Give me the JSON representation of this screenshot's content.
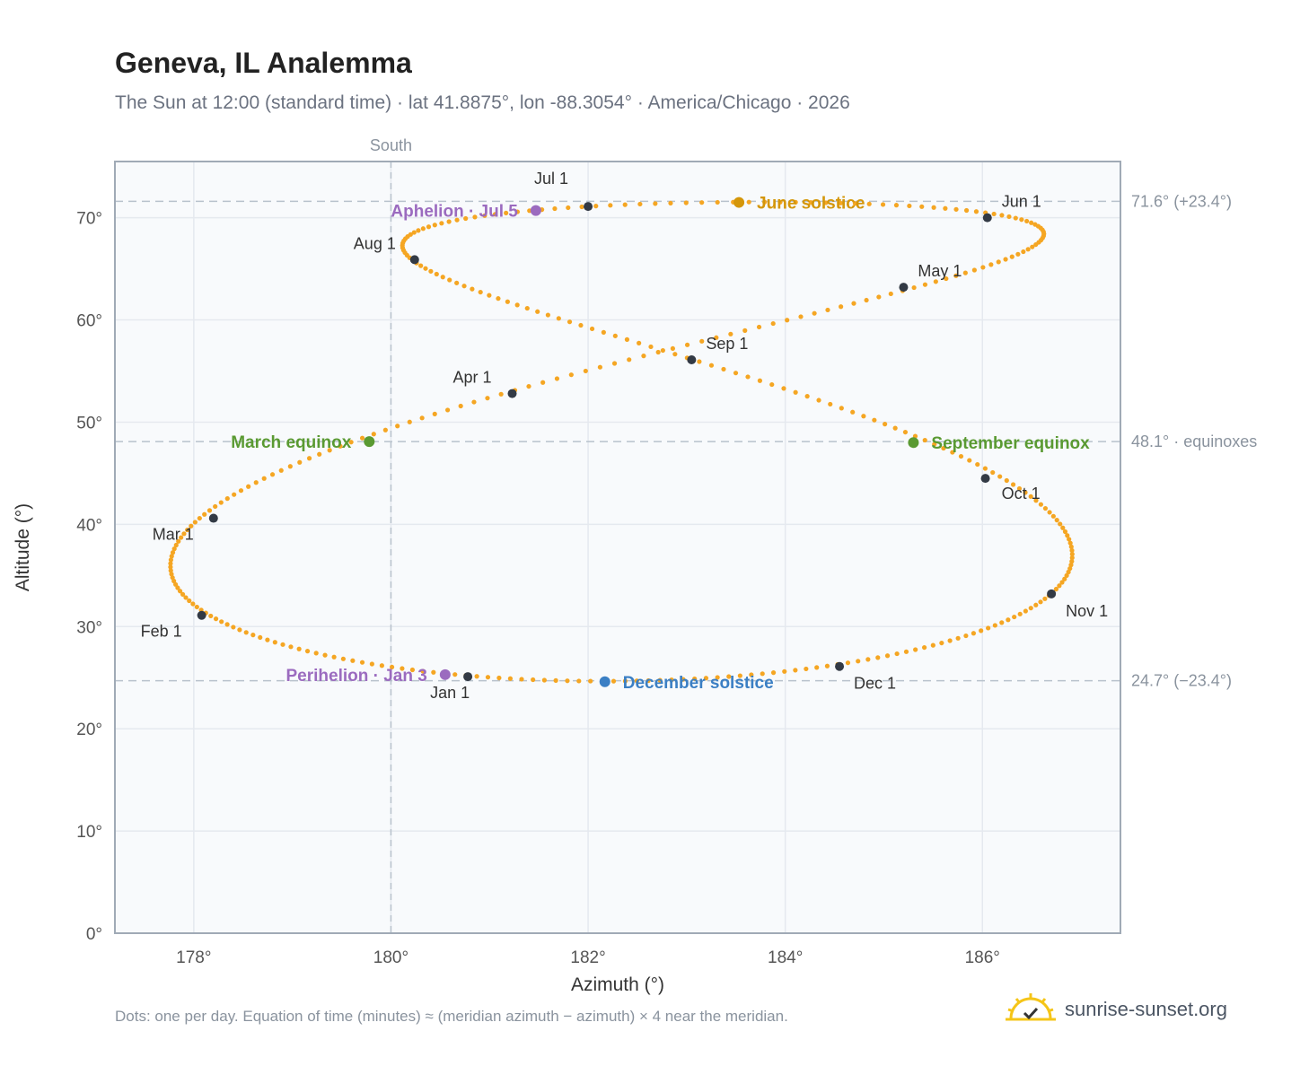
{
  "title": "Geneva, IL Analemma",
  "subtitle": "The Sun at 12:00 (standard time) · lat 41.8875°, lon -88.3054° · America/Chicago · 2026",
  "footnote": "Dots: one per day. Equation of time (minutes) ≈ (meridian azimuth − azimuth) × 4 near the meridian.",
  "brand": {
    "name": "sunrise-sunset.org",
    "icon": "sun-check-icon"
  },
  "colors": {
    "path": "#f5a623",
    "month": "#333a45",
    "june": "#d4960a",
    "december": "#3b7fc4",
    "equinox": "#5a9a32",
    "apsis": "#9b6bbf",
    "grid": "#e5e9ef",
    "ref": "#b8c2cc",
    "frame": "#a0aab6"
  },
  "chart_data": {
    "type": "scatter",
    "xlabel": "Azimuth (°)",
    "ylabel": "Altitude (°)",
    "xlim": [
      177.2,
      187.4
    ],
    "ylim": [
      0,
      75.5
    ],
    "xticks": [
      178,
      180,
      182,
      184,
      186
    ],
    "xtick_labels": [
      "178°",
      "180°",
      "182°",
      "184°",
      "186°"
    ],
    "yticks": [
      0,
      10,
      20,
      30,
      40,
      50,
      60,
      70
    ],
    "ytick_labels": [
      "0°",
      "10°",
      "20°",
      "30°",
      "40°",
      "50°",
      "60°",
      "70°"
    ],
    "grid": true,
    "south_line": {
      "x": 180,
      "label": "South"
    },
    "reference_lines": [
      {
        "y": 71.6,
        "label": "71.6° (+23.4°)"
      },
      {
        "y": 48.1,
        "label": "48.1° · equinoxes"
      },
      {
        "y": 24.7,
        "label": "24.7° (−23.4°)"
      }
    ],
    "month_markers": [
      {
        "label": "Jan 1",
        "x": 180.78,
        "y": 25.1
      },
      {
        "label": "Feb 1",
        "x": 178.08,
        "y": 31.1
      },
      {
        "label": "Mar 1",
        "x": 178.2,
        "y": 40.6
      },
      {
        "label": "Apr 1",
        "x": 181.23,
        "y": 52.8
      },
      {
        "label": "May 1",
        "x": 185.2,
        "y": 63.2
      },
      {
        "label": "Jun 1",
        "x": 186.05,
        "y": 70.0
      },
      {
        "label": "Jul 1",
        "x": 182.0,
        "y": 71.1
      },
      {
        "label": "Aug 1",
        "x": 180.24,
        "y": 65.9
      },
      {
        "label": "Sep 1",
        "x": 183.05,
        "y": 56.1
      },
      {
        "label": "Oct 1",
        "x": 186.03,
        "y": 44.5
      },
      {
        "label": "Nov 1",
        "x": 186.7,
        "y": 33.2
      },
      {
        "label": "Dec 1",
        "x": 184.55,
        "y": 26.1
      }
    ],
    "events": [
      {
        "label": "June solstice",
        "x": 183.53,
        "y": 71.5,
        "color": "#d4960a"
      },
      {
        "label": "December solstice",
        "x": 182.17,
        "y": 24.6,
        "color": "#3b7fc4"
      },
      {
        "label": "March equinox",
        "x": 179.78,
        "y": 48.1,
        "color": "#5a9a32"
      },
      {
        "label": "September equinox",
        "x": 185.3,
        "y": 48.0,
        "color": "#5a9a32"
      },
      {
        "label": "Aphelion · Jul 5",
        "x": 181.47,
        "y": 70.7,
        "color": "#9b6bbf"
      },
      {
        "label": "Perihelion · Jan 3",
        "x": 180.55,
        "y": 25.3,
        "color": "#9b6bbf"
      }
    ]
  }
}
